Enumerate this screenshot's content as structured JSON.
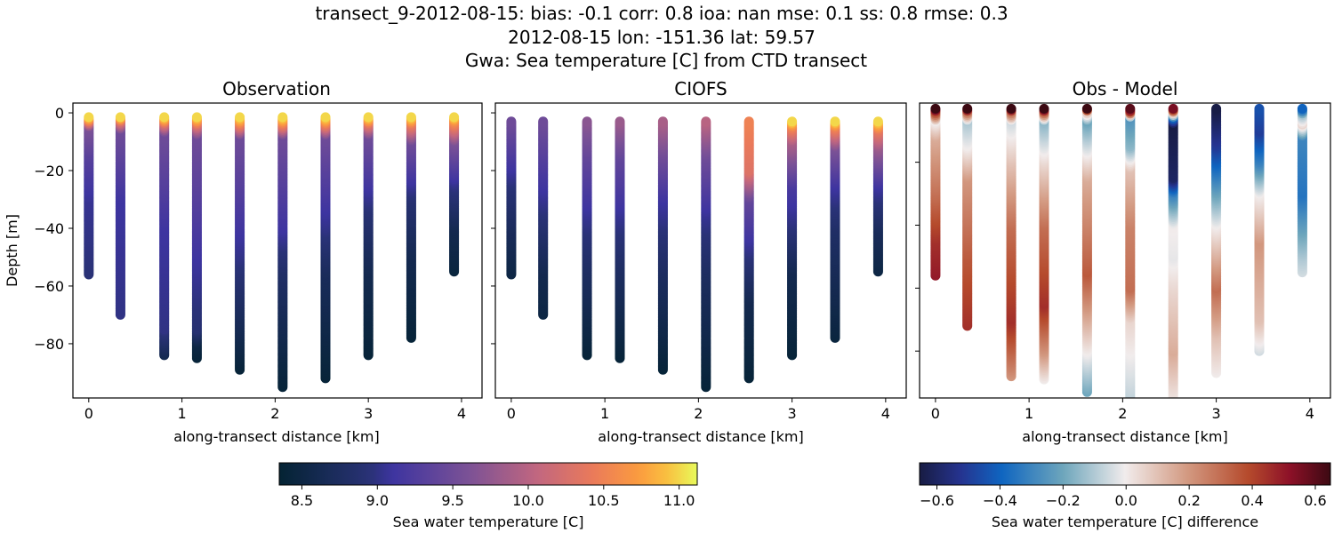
{
  "title_lines": [
    "transect_9-2012-08-15: bias: -0.1  corr: 0.8  ioa: nan  mse: 0.1  ss: 0.8  rmse: 0.3",
    "2012-08-15 lon: -151.36 lat: 59.57",
    "Gwa: Sea temperature [C] from CTD transect"
  ],
  "chart_data": [
    {
      "type": "scatter",
      "title": "Observation",
      "xlabel": "along-transect distance [km]",
      "ylabel": "Depth [m]",
      "xlim": [
        -0.17,
        4.22
      ],
      "ylim": [
        -98.8,
        3.4
      ],
      "xticks": [
        0,
        1,
        2,
        3,
        4
      ],
      "yticks": [
        0,
        -20,
        -40,
        -60,
        -80
      ],
      "colormap": "thermal",
      "stations": [
        {
          "x": 0.0,
          "profile": [
            [
              -1.5,
              11.0
            ],
            [
              -3,
              10.4
            ],
            [
              -5,
              9.6
            ],
            [
              -15,
              9.3
            ],
            [
              -30,
              9.05
            ],
            [
              -56,
              8.95
            ]
          ]
        },
        {
          "x": 0.34,
          "profile": [
            [
              -1.5,
              11.0
            ],
            [
              -3,
              10.3
            ],
            [
              -6,
              9.5
            ],
            [
              -30,
              9.1
            ],
            [
              -70,
              9.0
            ]
          ]
        },
        {
          "x": 0.81,
          "profile": [
            [
              -1.5,
              11.0
            ],
            [
              -4,
              10.2
            ],
            [
              -7,
              9.5
            ],
            [
              -40,
              9.1
            ],
            [
              -75,
              9.0
            ],
            [
              -84,
              8.6
            ]
          ]
        },
        {
          "x": 1.16,
          "profile": [
            [
              -1.5,
              11.0
            ],
            [
              -4.5,
              10.2
            ],
            [
              -8,
              9.5
            ],
            [
              -50,
              9.1
            ],
            [
              -75,
              8.9
            ],
            [
              -80,
              8.5
            ],
            [
              -85,
              8.4
            ]
          ]
        },
        {
          "x": 1.62,
          "profile": [
            [
              -1.5,
              11.0
            ],
            [
              -5,
              10.2
            ],
            [
              -8,
              9.5
            ],
            [
              -50,
              9.0
            ],
            [
              -70,
              8.7
            ],
            [
              -89,
              8.4
            ]
          ]
        },
        {
          "x": 2.08,
          "profile": [
            [
              -1.5,
              11.0
            ],
            [
              -5,
              10.2
            ],
            [
              -8,
              9.5
            ],
            [
              -40,
              9.1
            ],
            [
              -55,
              8.8
            ],
            [
              -95,
              8.4
            ]
          ]
        },
        {
          "x": 2.54,
          "profile": [
            [
              -1.5,
              11.0
            ],
            [
              -5,
              10.2
            ],
            [
              -8,
              9.5
            ],
            [
              -40,
              9.0
            ],
            [
              -55,
              8.7
            ],
            [
              -92,
              8.4
            ]
          ]
        },
        {
          "x": 3.0,
          "profile": [
            [
              -1.5,
              11.0
            ],
            [
              -4,
              10.3
            ],
            [
              -8,
              9.5
            ],
            [
              -35,
              8.9
            ],
            [
              -55,
              8.6
            ],
            [
              -84,
              8.4
            ]
          ]
        },
        {
          "x": 3.46,
          "profile": [
            [
              -1.5,
              11.0
            ],
            [
              -4,
              10.4
            ],
            [
              -10,
              9.5
            ],
            [
              -30,
              8.9
            ],
            [
              -50,
              8.6
            ],
            [
              -78,
              8.4
            ]
          ]
        },
        {
          "x": 3.92,
          "profile": [
            [
              -1.5,
              11.0
            ],
            [
              -3,
              10.6
            ],
            [
              -10,
              9.6
            ],
            [
              -25,
              9.0
            ],
            [
              -40,
              8.6
            ],
            [
              -55,
              8.45
            ]
          ]
        }
      ]
    },
    {
      "type": "scatter",
      "title": "CIOFS",
      "xlabel": "along-transect distance [km]",
      "xlim": [
        -0.17,
        4.22
      ],
      "ylim": [
        -98.8,
        3.4
      ],
      "xticks": [
        0,
        1,
        2,
        3,
        4
      ],
      "colormap": "thermal",
      "stations": [
        {
          "x": 0.0,
          "profile": [
            [
              -3,
              9.5
            ],
            [
              -15,
              9.2
            ],
            [
              -25,
              8.95
            ],
            [
              -40,
              8.7
            ],
            [
              -56,
              8.5
            ]
          ]
        },
        {
          "x": 0.34,
          "profile": [
            [
              -3,
              9.5
            ],
            [
              -20,
              9.2
            ],
            [
              -35,
              8.95
            ],
            [
              -55,
              8.6
            ],
            [
              -70,
              8.5
            ]
          ]
        },
        {
          "x": 0.81,
          "profile": [
            [
              -3,
              9.7
            ],
            [
              -15,
              9.4
            ],
            [
              -35,
              9.05
            ],
            [
              -55,
              8.75
            ],
            [
              -84,
              8.4
            ]
          ]
        },
        {
          "x": 1.16,
          "profile": [
            [
              -3,
              9.8
            ],
            [
              -15,
              9.4
            ],
            [
              -35,
              9.05
            ],
            [
              -55,
              8.75
            ],
            [
              -85,
              8.4
            ]
          ]
        },
        {
          "x": 1.62,
          "profile": [
            [
              -3,
              9.9
            ],
            [
              -15,
              9.5
            ],
            [
              -30,
              9.1
            ],
            [
              -55,
              8.75
            ],
            [
              -89,
              8.4
            ]
          ]
        },
        {
          "x": 2.08,
          "profile": [
            [
              -3,
              10.0
            ],
            [
              -15,
              9.5
            ],
            [
              -35,
              9.05
            ],
            [
              -55,
              8.75
            ],
            [
              -95,
              8.4
            ]
          ]
        },
        {
          "x": 2.54,
          "profile": [
            [
              -3,
              10.5
            ],
            [
              -20,
              10.3
            ],
            [
              -30,
              9.4
            ],
            [
              -50,
              8.95
            ],
            [
              -65,
              8.6
            ],
            [
              -92,
              8.4
            ]
          ]
        },
        {
          "x": 3.0,
          "profile": [
            [
              -3,
              11.0
            ],
            [
              -5,
              10.5
            ],
            [
              -10,
              9.9
            ],
            [
              -25,
              9.2
            ],
            [
              -40,
              8.95
            ],
            [
              -55,
              8.6
            ],
            [
              -84,
              8.4
            ]
          ]
        },
        {
          "x": 3.46,
          "profile": [
            [
              -3,
              11.0
            ],
            [
              -5,
              10.5
            ],
            [
              -12,
              9.6
            ],
            [
              -25,
              9.1
            ],
            [
              -40,
              8.8
            ],
            [
              -78,
              8.45
            ]
          ]
        },
        {
          "x": 3.92,
          "profile": [
            [
              -3,
              11.0
            ],
            [
              -6,
              10.4
            ],
            [
              -12,
              9.8
            ],
            [
              -25,
              9.1
            ],
            [
              -40,
              8.7
            ],
            [
              -55,
              8.5
            ]
          ]
        }
      ]
    },
    {
      "type": "scatter",
      "title": "Obs - Model",
      "xlabel": "along-transect distance [km]",
      "xlim": [
        -0.17,
        4.22
      ],
      "ylim": [
        -94.9,
        -1.2
      ],
      "xticks": [
        0,
        1,
        2,
        3,
        4
      ],
      "yticks": [
        -20,
        -40,
        -60,
        -80
      ],
      "colormap": "balance",
      "stations": [
        {
          "x": 0.0,
          "profile": [
            [
              -3,
              0.65
            ],
            [
              -4,
              0.4
            ],
            [
              -7,
              0.0
            ],
            [
              -12,
              0.15
            ],
            [
              -30,
              0.3
            ],
            [
              -45,
              0.45
            ],
            [
              -56,
              0.5
            ]
          ]
        },
        {
          "x": 0.34,
          "profile": [
            [
              -3,
              0.65
            ],
            [
              -4,
              0.3
            ],
            [
              -7,
              -0.1
            ],
            [
              -15,
              0.0
            ],
            [
              -25,
              0.2
            ],
            [
              -50,
              0.35
            ],
            [
              -72,
              0.45
            ]
          ]
        },
        {
          "x": 0.81,
          "profile": [
            [
              -3,
              0.65
            ],
            [
              -4,
              0.3
            ],
            [
              -7,
              -0.05
            ],
            [
              -20,
              0.1
            ],
            [
              -40,
              0.3
            ],
            [
              -70,
              0.45
            ],
            [
              -85,
              0.25
            ],
            [
              -88,
              0.2
            ]
          ]
        },
        {
          "x": 1.16,
          "profile": [
            [
              -3,
              0.65
            ],
            [
              -4,
              0.35
            ],
            [
              -7,
              -0.15
            ],
            [
              -20,
              0.05
            ],
            [
              -40,
              0.3
            ],
            [
              -65,
              0.45
            ],
            [
              -80,
              0.2
            ],
            [
              -89,
              0.0
            ]
          ]
        },
        {
          "x": 1.62,
          "profile": [
            [
              -3,
              0.65
            ],
            [
              -4,
              0.1
            ],
            [
              -7,
              -0.2
            ],
            [
              -12,
              -0.1
            ],
            [
              -25,
              0.15
            ],
            [
              -55,
              0.35
            ],
            [
              -80,
              0.0
            ],
            [
              -93,
              -0.2
            ]
          ]
        },
        {
          "x": 2.08,
          "profile": [
            [
              -3,
              0.6
            ],
            [
              -4,
              0.4
            ],
            [
              -6,
              -0.25
            ],
            [
              -15,
              -0.15
            ],
            [
              -22,
              0.1
            ],
            [
              -40,
              0.25
            ],
            [
              -60,
              0.3
            ],
            [
              -70,
              0.05
            ],
            [
              -99,
              -0.1
            ]
          ]
        },
        {
          "x": 2.54,
          "profile": [
            [
              -3,
              0.55
            ],
            [
              -4,
              0.2
            ],
            [
              -6,
              -0.4
            ],
            [
              -8,
              -0.65
            ],
            [
              -25,
              -0.6
            ],
            [
              -30,
              -0.3
            ],
            [
              -40,
              0.0
            ],
            [
              -50,
              -0.02
            ],
            [
              -60,
              0.05
            ],
            [
              -80,
              0.15
            ],
            [
              -96,
              0.0
            ]
          ]
        },
        {
          "x": 3.0,
          "profile": [
            [
              -3,
              -0.65
            ],
            [
              -15,
              -0.5
            ],
            [
              -25,
              -0.3
            ],
            [
              -40,
              0.0
            ],
            [
              -60,
              0.3
            ],
            [
              -75,
              0.1
            ],
            [
              -87,
              0.0
            ]
          ]
        },
        {
          "x": 3.46,
          "profile": [
            [
              -3,
              -0.45
            ],
            [
              -10,
              -0.5
            ],
            [
              -20,
              -0.3
            ],
            [
              -30,
              0.0
            ],
            [
              -45,
              0.2
            ],
            [
              -70,
              0.1
            ],
            [
              -80,
              -0.05
            ]
          ]
        },
        {
          "x": 3.92,
          "profile": [
            [
              -3,
              -0.4
            ],
            [
              -5,
              -0.1
            ],
            [
              -8,
              0.05
            ],
            [
              -12,
              -0.3
            ],
            [
              -30,
              -0.35
            ],
            [
              -50,
              -0.1
            ],
            [
              -55,
              -0.05
            ]
          ]
        }
      ]
    }
  ],
  "colorbars": [
    {
      "label": "Sea water temperature [C]",
      "range": [
        8.35,
        11.12
      ],
      "ticks": [
        "8.5",
        "9.0",
        "9.5",
        "10.0",
        "10.5",
        "11.0"
      ],
      "colormap": "thermal"
    },
    {
      "label": "Sea water temperature [C] difference",
      "range": [
        -0.655,
        0.648
      ],
      "ticks": [
        "−0.6",
        "−0.4",
        "−0.2",
        "0.0",
        "0.2",
        "0.4",
        "0.6"
      ],
      "colormap": "balance"
    }
  ],
  "colormaps": {
    "thermal": [
      [
        0,
        "#042333"
      ],
      [
        0.22,
        "#2a3277"
      ],
      [
        0.27,
        "#3d34a0"
      ],
      [
        0.45,
        "#7a5196"
      ],
      [
        0.62,
        "#c2677f"
      ],
      [
        0.75,
        "#ea7a5a"
      ],
      [
        0.86,
        "#fb9b3f"
      ],
      [
        0.93,
        "#f9c140"
      ],
      [
        1,
        "#e8fa5b"
      ]
    ],
    "balance": [
      [
        0,
        "#181c43"
      ],
      [
        0.1,
        "#25338f"
      ],
      [
        0.2,
        "#0f65c0"
      ],
      [
        0.35,
        "#6ea6bc"
      ],
      [
        0.5,
        "#f1ecec"
      ],
      [
        0.65,
        "#d39a82"
      ],
      [
        0.8,
        "#b54a2c"
      ],
      [
        0.9,
        "#8d1128"
      ],
      [
        1,
        "#3c0912"
      ]
    ]
  }
}
